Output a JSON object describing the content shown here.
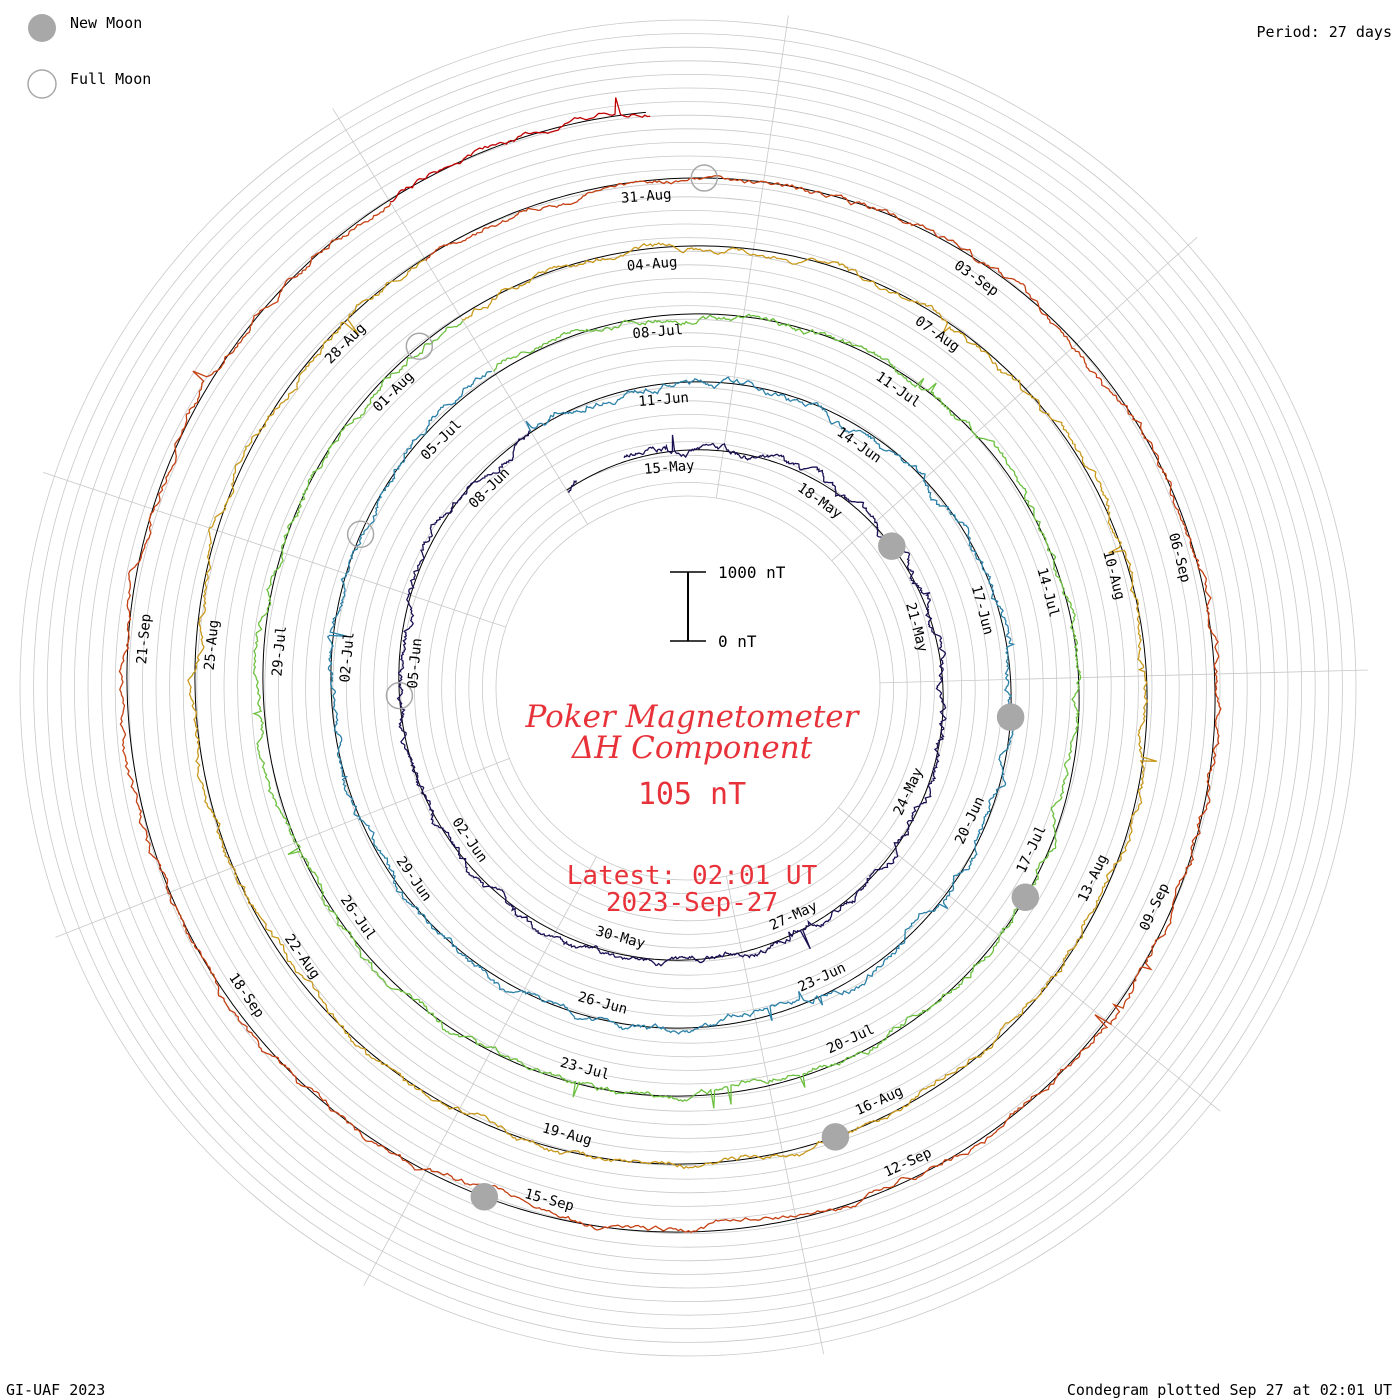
{
  "header": {
    "legend_new_moon": "New Moon",
    "legend_full_moon": "Full Moon",
    "period": "Period: 27 days"
  },
  "center": {
    "title_line1": "Poker Magnetometer",
    "title_line2": "ΔH Component",
    "current_value": "105 nT",
    "latest_label": "Latest: 02:01 UT",
    "latest_date": "2023-Sep-27",
    "scale_top": "1000 nT",
    "scale_bottom": "0 nT"
  },
  "footer": {
    "left": "GI-UAF 2023",
    "right": "Condegram plotted Sep 27 at 02:01 UT"
  },
  "chart_data": {
    "type": "line",
    "form": "condegram spiral",
    "period_days": 27,
    "start_date": "2023-05-13",
    "end_date": "2023-09-27",
    "y_unit": "nT",
    "scale_bar": [
      0,
      1000
    ],
    "baseline_nT": 0,
    "rings": [
      {
        "cycle": 1,
        "color": "#000000",
        "date_labels": [
          "15-May",
          "18-May",
          "21-May",
          "24-May",
          "27-May",
          "30-May",
          "02-Jun",
          "05-Jun",
          "08-Jun"
        ]
      },
      {
        "cycle": 2,
        "color": "#2d1a8c",
        "date_labels": [
          "11-Jun",
          "14-Jun",
          "17-Jun",
          "20-Jun",
          "23-Jun",
          "26-Jun",
          "29-Jun",
          "02-Jul",
          "05-Jul"
        ]
      },
      {
        "cycle": 3,
        "color": "#2c8fb5",
        "date_labels": [
          "08-Jul",
          "11-Jul",
          "14-Jul",
          "17-Jul",
          "20-Jul",
          "23-Jul",
          "26-Jul",
          "29-Jul",
          "01-Aug"
        ]
      },
      {
        "cycle": 4,
        "color": "#5dbd3e",
        "date_labels": [
          "04-Aug",
          "07-Aug",
          "10-Aug",
          "13-Aug",
          "16-Aug",
          "19-Aug",
          "22-Aug",
          "25-Aug",
          "28-Aug"
        ]
      },
      {
        "cycle": 5,
        "color": "#c8901c",
        "date_labels": [
          "31-Aug",
          "03-Sep",
          "06-Sep",
          "09-Sep",
          "12-Sep",
          "15-Sep",
          "18-Sep",
          "21-Sep"
        ]
      }
    ],
    "new_moons": [
      "2023-05-19",
      "2023-06-18",
      "2023-07-17",
      "2023-08-16",
      "2023-09-15"
    ],
    "full_moons": [
      "2023-06-04",
      "2023-07-03",
      "2023-08-01",
      "2023-08-31"
    ],
    "series_colors": {
      "start": "#000000",
      "mid1": "#2d1a8c",
      "mid2": "#2c9fb0",
      "mid3": "#6fc23a",
      "mid4": "#c9a21c",
      "mid5": "#c8601c",
      "end": "#c00000"
    },
    "moon_colors": {
      "new": "#a8a8a8",
      "full_outline": "#a8a8a8"
    },
    "text_color": "#e8323a"
  }
}
